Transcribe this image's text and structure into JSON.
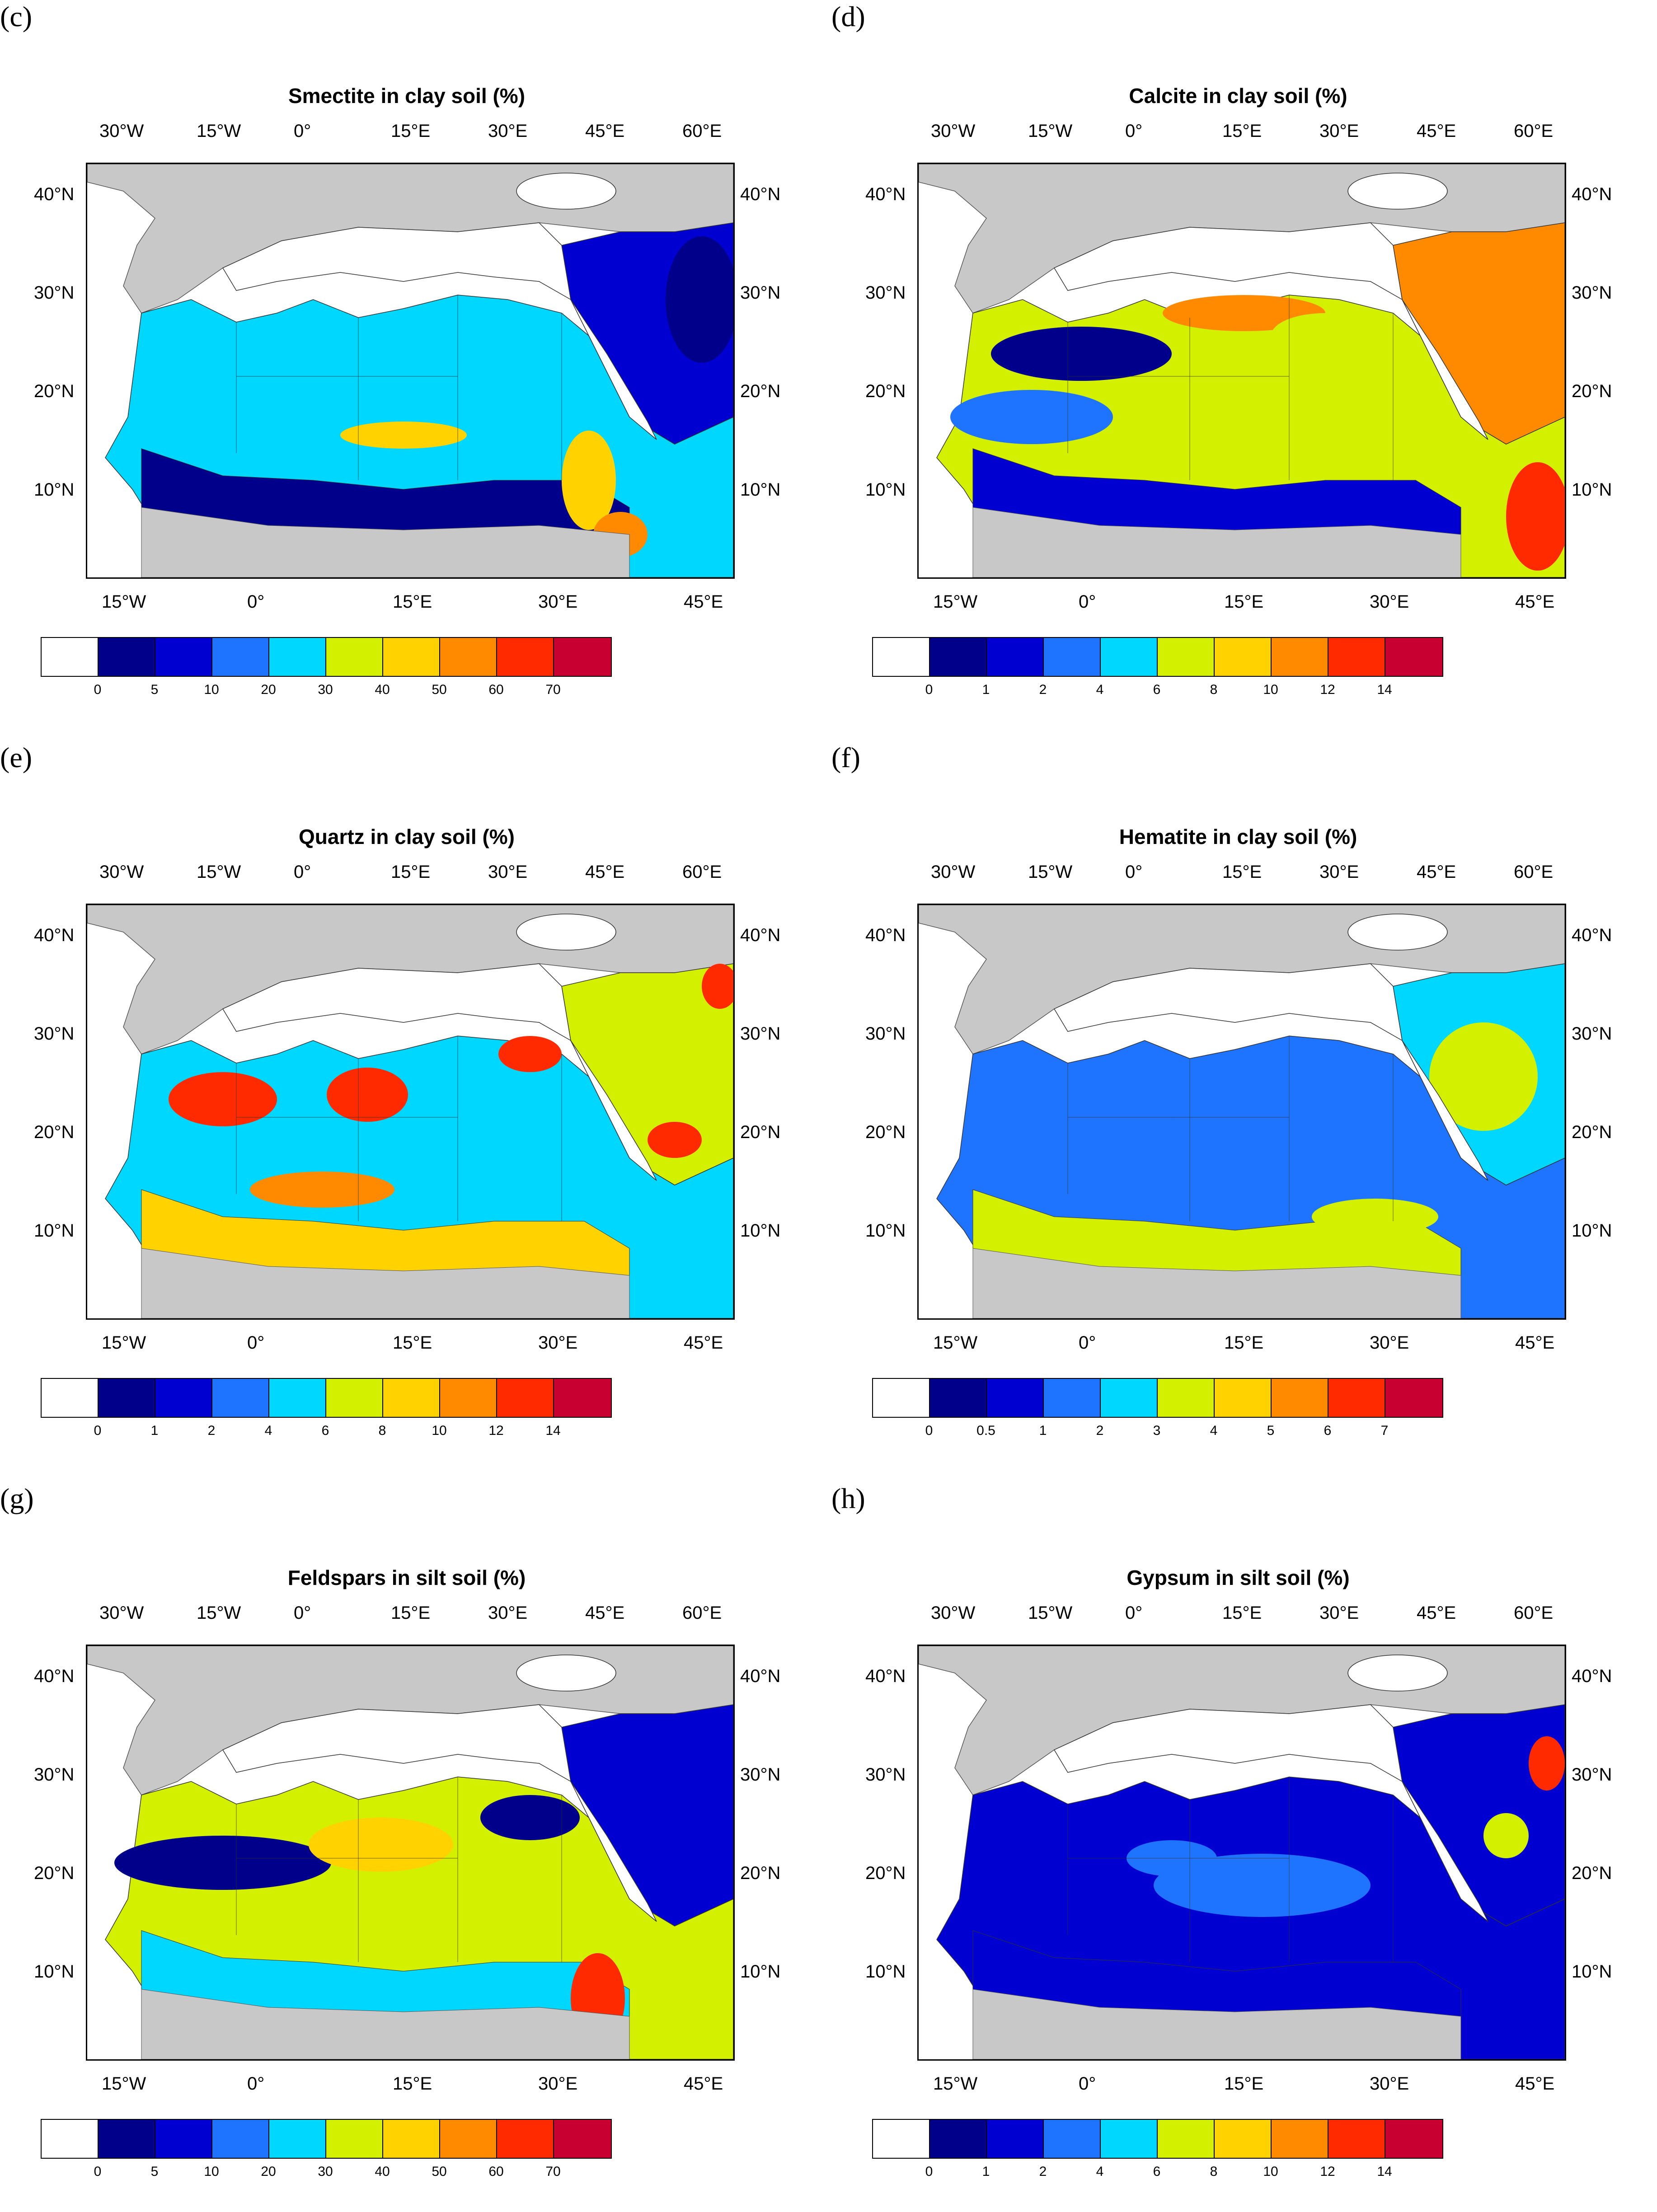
{
  "colors": [
    "#ffffff",
    "#00008b",
    "#0000d0",
    "#1e73ff",
    "#00d7ff",
    "#d2f000",
    "#ffd200",
    "#ff8a00",
    "#ff2a00",
    "#c80032"
  ],
  "land_gray": "#c8c8c8",
  "top_lon_ticks": [
    "30°W",
    "15°W",
    "0°",
    "15°E",
    "30°E",
    "45°E",
    "60°E"
  ],
  "bottom_lon_ticks": [
    "15°W",
    "0°",
    "15°E",
    "30°E",
    "45°E"
  ],
  "lat_ticks": [
    "40°N",
    "30°N",
    "20°N",
    "10°N"
  ],
  "panels": [
    {
      "label": "(c)",
      "title": "Smectite in clay soil (%)",
      "scale": [
        "0",
        "5",
        "10",
        "20",
        "30",
        "40",
        "50",
        "60",
        "70"
      ],
      "pattern": "smectite"
    },
    {
      "label": "(d)",
      "title": "Calcite in clay soil (%)",
      "scale": [
        "0",
        "1",
        "2",
        "4",
        "6",
        "8",
        "10",
        "12",
        "14"
      ],
      "pattern": "calcite"
    },
    {
      "label": "(e)",
      "title": "Quartz in clay soil (%)",
      "scale": [
        "0",
        "1",
        "2",
        "4",
        "6",
        "8",
        "10",
        "12",
        "14"
      ],
      "pattern": "quartz"
    },
    {
      "label": "(f)",
      "title": "Hematite in clay soil (%)",
      "scale": [
        "0",
        "0.5",
        "1",
        "2",
        "3",
        "4",
        "5",
        "6",
        "7"
      ],
      "pattern": "hematite"
    },
    {
      "label": "(g)",
      "title": "Feldspars in silt soil (%)",
      "scale": [
        "0",
        "5",
        "10",
        "20",
        "30",
        "40",
        "50",
        "60",
        "70"
      ],
      "pattern": "feldspars"
    },
    {
      "label": "(h)",
      "title": "Gypsum in silt soil (%)",
      "scale": [
        "0",
        "1",
        "2",
        "4",
        "6",
        "8",
        "10",
        "12",
        "14"
      ],
      "pattern": "gypsum"
    }
  ]
}
